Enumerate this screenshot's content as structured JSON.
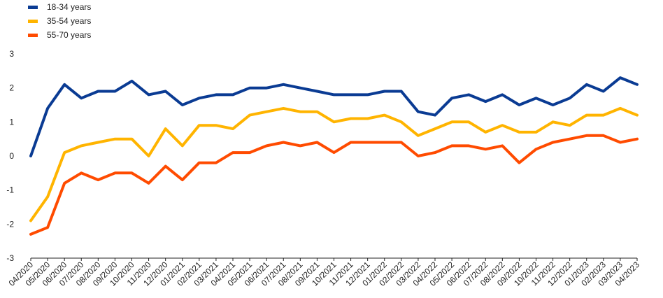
{
  "chart_data": {
    "type": "line",
    "title": "",
    "xlabel": "",
    "ylabel": "",
    "ylim": [
      -3,
      3
    ],
    "yticks": [
      -3,
      -2,
      -1,
      0,
      1,
      2,
      3
    ],
    "grid": false,
    "legend_position": "top-left",
    "categories": [
      "04/2020",
      "05/2020",
      "06/2020",
      "07/2020",
      "08/2020",
      "09/2020",
      "10/2020",
      "11/2020",
      "12/2020",
      "01/2021",
      "02/2021",
      "03/2021",
      "04/2021",
      "05/2021",
      "06/2021",
      "07/2021",
      "08/2021",
      "09/2021",
      "10/2021",
      "11/2021",
      "12/2021",
      "01/2022",
      "02/2022",
      "03/2022",
      "04/2022",
      "05/2022",
      "06/2022",
      "07/2022",
      "08/2022",
      "09/2022",
      "10/2022",
      "11/2022",
      "12/2022",
      "01/2023",
      "02/2023",
      "03/2023",
      "04/2023"
    ],
    "series": [
      {
        "name": "18-34 years",
        "color": "#0a3b93",
        "values": [
          0,
          1.4,
          2.1,
          1.7,
          1.9,
          1.9,
          2.2,
          1.8,
          1.9,
          1.5,
          1.7,
          1.8,
          1.8,
          2.0,
          2.0,
          2.1,
          2.0,
          1.9,
          1.8,
          1.8,
          1.8,
          1.9,
          1.9,
          1.3,
          1.2,
          1.7,
          1.8,
          1.6,
          1.8,
          1.5,
          1.7,
          1.5,
          1.7,
          2.1,
          1.9,
          2.3,
          2.1
        ]
      },
      {
        "name": "35-54 years",
        "color": "#ffb400",
        "values": [
          -1.9,
          -1.2,
          0.1,
          0.3,
          0.4,
          0.5,
          0.5,
          0.0,
          0.8,
          0.3,
          0.9,
          0.9,
          0.8,
          1.2,
          1.3,
          1.4,
          1.3,
          1.3,
          1.0,
          1.1,
          1.1,
          1.2,
          1.0,
          0.6,
          0.8,
          1.0,
          1.0,
          0.7,
          0.9,
          0.7,
          0.7,
          1.0,
          0.9,
          1.2,
          1.2,
          1.4,
          1.2
        ]
      },
      {
        "name": "55-70 years",
        "color": "#ff4b00",
        "values": [
          -2.3,
          -2.1,
          -0.8,
          -0.5,
          -0.7,
          -0.5,
          -0.5,
          -0.8,
          -0.3,
          -0.7,
          -0.2,
          -0.2,
          0.1,
          0.1,
          0.3,
          0.4,
          0.3,
          0.4,
          0.1,
          0.4,
          0.4,
          0.4,
          0.4,
          0.0,
          0.1,
          0.3,
          0.3,
          0.2,
          0.3,
          -0.2,
          0.2,
          0.4,
          0.5,
          0.6,
          0.6,
          0.4,
          0.5
        ]
      }
    ]
  }
}
